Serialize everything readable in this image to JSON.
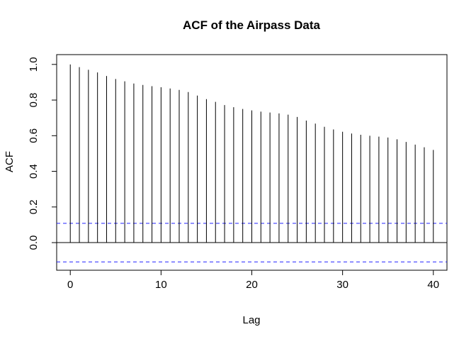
{
  "chart_data": {
    "type": "bar",
    "title": "ACF of the Airpass Data",
    "xlabel": "Lag",
    "ylabel": "ACF",
    "x_ticks": [
      0,
      10,
      20,
      30,
      40
    ],
    "y_ticks": [
      0.0,
      0.2,
      0.4,
      0.6,
      0.8,
      1.0
    ],
    "x_tick_labels": [
      "0",
      "10",
      "20",
      "30",
      "40"
    ],
    "y_tick_labels": [
      "0.0",
      "0.2",
      "0.4",
      "0.6",
      "0.8",
      "1.0"
    ],
    "xlim": [
      -1.5,
      41.5
    ],
    "ylim": [
      -0.155,
      1.055
    ],
    "grid": false,
    "x": [
      0,
      1,
      2,
      3,
      4,
      5,
      6,
      7,
      8,
      9,
      10,
      11,
      12,
      13,
      14,
      15,
      16,
      17,
      18,
      19,
      20,
      21,
      22,
      23,
      24,
      25,
      26,
      27,
      28,
      29,
      30,
      31,
      32,
      33,
      34,
      35,
      36,
      37,
      38,
      39,
      40
    ],
    "values": [
      1.0,
      0.985,
      0.97,
      0.955,
      0.935,
      0.918,
      0.905,
      0.893,
      0.885,
      0.878,
      0.872,
      0.865,
      0.857,
      0.845,
      0.825,
      0.805,
      0.79,
      0.772,
      0.76,
      0.75,
      0.742,
      0.735,
      0.73,
      0.725,
      0.718,
      0.705,
      0.685,
      0.668,
      0.65,
      0.635,
      0.622,
      0.612,
      0.605,
      0.6,
      0.595,
      0.59,
      0.58,
      0.565,
      0.55,
      0.535,
      0.52
    ],
    "confidence_bounds": [
      0.108,
      -0.108
    ],
    "colors": {
      "bars": "#000000",
      "zero_line": "#000000",
      "confidence_lines": "#2222ff",
      "axes": "#000000"
    }
  }
}
